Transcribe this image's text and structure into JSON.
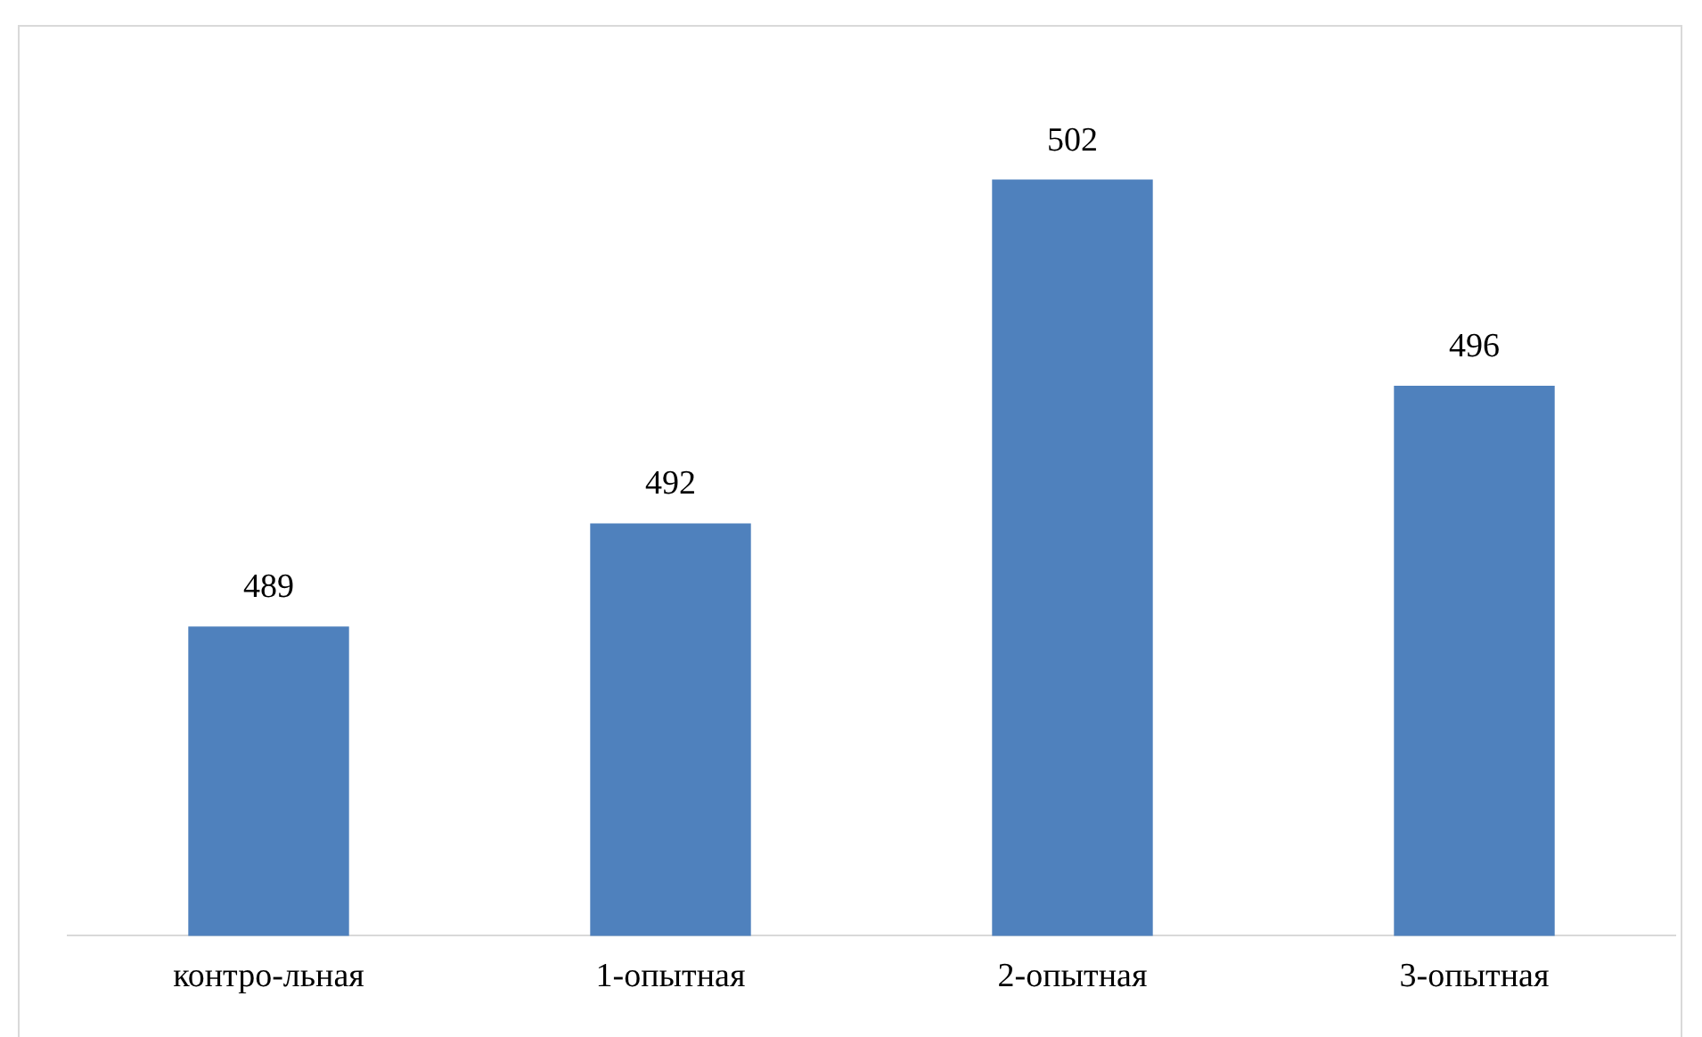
{
  "chart_data": {
    "type": "bar",
    "categories": [
      "контро-льная",
      "1-опытная",
      "2-опытная",
      "3-опытная"
    ],
    "values": [
      489,
      492,
      502,
      496
    ],
    "color": "#4f81bd",
    "ylim": [
      480,
      506.5
    ],
    "data_labels": true,
    "grid": false,
    "legend": false
  }
}
